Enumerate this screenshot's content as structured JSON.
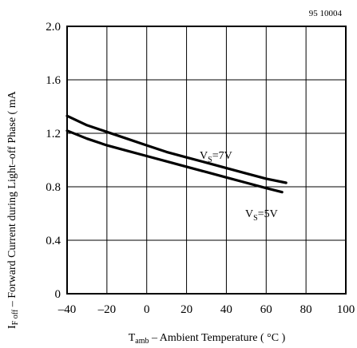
{
  "chart_data": {
    "type": "line",
    "figure_code": "95 10004",
    "xlabel": {
      "symbol": "T",
      "subscript": "amb",
      "text": " – Ambient Temperature ( °C )"
    },
    "ylabel": {
      "symbol": "I",
      "subscript": "F off",
      "text": " – Forward Current during Light–off Phase ( mA"
    },
    "xlim": [
      -40,
      100
    ],
    "ylim": [
      0,
      2.0
    ],
    "x_ticks": [
      -40,
      -20,
      0,
      20,
      40,
      60,
      80,
      100
    ],
    "x_tick_labels": [
      "–40",
      "–20",
      "0",
      "20",
      "40",
      "60",
      "80",
      "100"
    ],
    "y_ticks": [
      0,
      0.4,
      0.8,
      1.2,
      1.6,
      2.0
    ],
    "y_tick_labels": [
      "0",
      "0.4",
      "0.8",
      "1.2",
      "1.6",
      "2.0"
    ],
    "grid": true,
    "series": [
      {
        "name": "VS=7V",
        "label": {
          "main": "V",
          "sub": "S",
          "rest": "=7V"
        },
        "x": [
          -40,
          -30,
          -20,
          -10,
          0,
          10,
          20,
          30,
          40,
          50,
          60,
          70
        ],
        "y": [
          1.33,
          1.26,
          1.21,
          1.16,
          1.11,
          1.06,
          1.02,
          0.98,
          0.94,
          0.9,
          0.86,
          0.83
        ]
      },
      {
        "name": "VS=5V",
        "label": {
          "main": "V",
          "sub": "S",
          "rest": "=5V"
        },
        "x": [
          -40,
          -30,
          -20,
          -10,
          0,
          10,
          20,
          30,
          40,
          50,
          60,
          68
        ],
        "y": [
          1.22,
          1.16,
          1.11,
          1.07,
          1.03,
          0.99,
          0.95,
          0.91,
          0.87,
          0.83,
          0.79,
          0.76
        ]
      }
    ]
  }
}
